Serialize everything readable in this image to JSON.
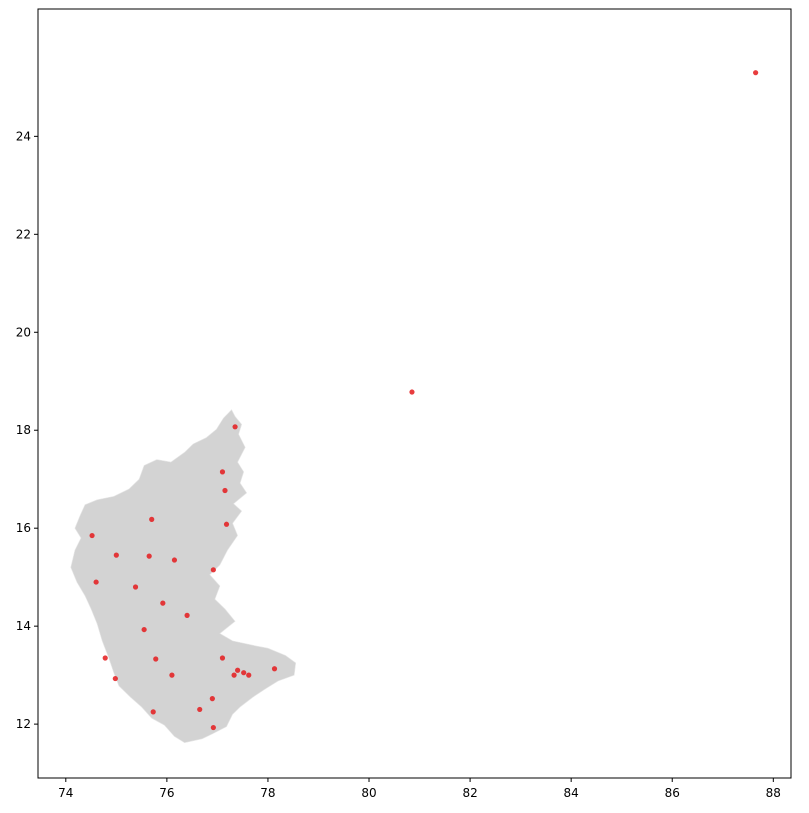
{
  "chart_data": {
    "type": "scatter",
    "title": "",
    "xlabel": "",
    "ylabel": "",
    "xlim": [
      73.45,
      88.35
    ],
    "ylim": [
      10.9,
      26.6
    ],
    "grid": false,
    "xticks": [
      74,
      76,
      78,
      80,
      82,
      84,
      86,
      88
    ],
    "yticks": [
      12,
      14,
      16,
      18,
      20,
      22,
      24
    ],
    "region_fill": "#d3d3d3",
    "region_outline": [
      [
        77.28,
        18.42
      ],
      [
        77.35,
        18.28
      ],
      [
        77.48,
        18.12
      ],
      [
        77.42,
        17.92
      ],
      [
        77.55,
        17.65
      ],
      [
        77.4,
        17.35
      ],
      [
        77.52,
        17.15
      ],
      [
        77.45,
        16.92
      ],
      [
        77.58,
        16.72
      ],
      [
        77.32,
        16.5
      ],
      [
        77.48,
        16.35
      ],
      [
        77.3,
        16.1
      ],
      [
        77.4,
        15.85
      ],
      [
        77.2,
        15.55
      ],
      [
        77.05,
        15.25
      ],
      [
        76.85,
        15.05
      ],
      [
        77.05,
        14.82
      ],
      [
        76.95,
        14.55
      ],
      [
        77.15,
        14.35
      ],
      [
        77.35,
        14.1
      ],
      [
        77.05,
        13.85
      ],
      [
        77.3,
        13.7
      ],
      [
        77.75,
        13.6
      ],
      [
        78.0,
        13.55
      ],
      [
        78.35,
        13.4
      ],
      [
        78.55,
        13.25
      ],
      [
        78.52,
        13.0
      ],
      [
        78.2,
        12.88
      ],
      [
        77.95,
        12.72
      ],
      [
        77.7,
        12.55
      ],
      [
        77.45,
        12.35
      ],
      [
        77.3,
        12.2
      ],
      [
        77.18,
        11.95
      ],
      [
        76.9,
        11.8
      ],
      [
        76.7,
        11.7
      ],
      [
        76.35,
        11.62
      ],
      [
        76.15,
        11.75
      ],
      [
        75.95,
        11.98
      ],
      [
        75.7,
        12.12
      ],
      [
        75.5,
        12.35
      ],
      [
        75.28,
        12.55
      ],
      [
        75.05,
        12.78
      ],
      [
        74.95,
        13.05
      ],
      [
        74.85,
        13.35
      ],
      [
        74.72,
        13.7
      ],
      [
        74.62,
        14.05
      ],
      [
        74.5,
        14.35
      ],
      [
        74.38,
        14.62
      ],
      [
        74.22,
        14.9
      ],
      [
        74.1,
        15.2
      ],
      [
        74.18,
        15.55
      ],
      [
        74.3,
        15.8
      ],
      [
        74.18,
        16.0
      ],
      [
        74.28,
        16.25
      ],
      [
        74.38,
        16.48
      ],
      [
        74.62,
        16.58
      ],
      [
        74.95,
        16.65
      ],
      [
        75.25,
        16.8
      ],
      [
        75.45,
        17.0
      ],
      [
        75.55,
        17.28
      ],
      [
        75.8,
        17.4
      ],
      [
        76.08,
        17.35
      ],
      [
        76.35,
        17.55
      ],
      [
        76.52,
        17.72
      ],
      [
        76.78,
        17.85
      ],
      [
        76.98,
        18.02
      ],
      [
        77.12,
        18.25
      ]
    ],
    "points_color": "#e41a1c",
    "points": [
      {
        "x": 87.65,
        "y": 25.3
      },
      {
        "x": 80.85,
        "y": 18.78
      },
      {
        "x": 77.35,
        "y": 18.07
      },
      {
        "x": 77.1,
        "y": 17.15
      },
      {
        "x": 77.15,
        "y": 16.77
      },
      {
        "x": 75.7,
        "y": 16.18
      },
      {
        "x": 77.18,
        "y": 16.08
      },
      {
        "x": 74.52,
        "y": 15.85
      },
      {
        "x": 75.0,
        "y": 15.45
      },
      {
        "x": 75.65,
        "y": 15.43
      },
      {
        "x": 76.15,
        "y": 15.35
      },
      {
        "x": 76.92,
        "y": 15.15
      },
      {
        "x": 74.6,
        "y": 14.9
      },
      {
        "x": 75.38,
        "y": 14.8
      },
      {
        "x": 75.92,
        "y": 14.47
      },
      {
        "x": 76.4,
        "y": 14.22
      },
      {
        "x": 75.55,
        "y": 13.93
      },
      {
        "x": 74.78,
        "y": 13.35
      },
      {
        "x": 75.78,
        "y": 13.33
      },
      {
        "x": 77.1,
        "y": 13.35
      },
      {
        "x": 77.4,
        "y": 13.1
      },
      {
        "x": 78.13,
        "y": 13.13
      },
      {
        "x": 77.52,
        "y": 13.05
      },
      {
        "x": 77.33,
        "y": 13.0
      },
      {
        "x": 77.62,
        "y": 13.0
      },
      {
        "x": 76.1,
        "y": 13.0
      },
      {
        "x": 74.98,
        "y": 12.93
      },
      {
        "x": 76.9,
        "y": 12.52
      },
      {
        "x": 76.65,
        "y": 12.3
      },
      {
        "x": 75.73,
        "y": 12.25
      },
      {
        "x": 76.92,
        "y": 11.93
      }
    ]
  }
}
